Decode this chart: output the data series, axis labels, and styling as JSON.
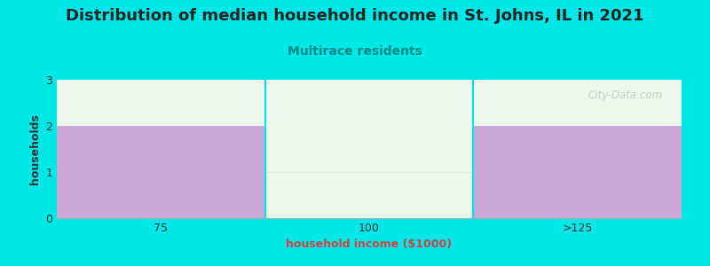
{
  "title": "Distribution of median household income in St. Johns, IL in 2021",
  "subtitle": "Multirace residents",
  "xlabel": "household income ($1000)",
  "ylabel": "households",
  "categories": [
    "75",
    "100",
    ">125"
  ],
  "values": [
    2,
    0,
    2
  ],
  "bar_colors": [
    "#c9a8d8",
    "#e2f0d8",
    "#c9a8d8"
  ],
  "ylim": [
    0,
    3
  ],
  "yticks": [
    0,
    1,
    2,
    3
  ],
  "background_color": "#00e8e8",
  "plot_bg_color": "#edf8ec",
  "title_color": "#222222",
  "subtitle_color": "#008888",
  "axis_label_color": "#333333",
  "tick_color": "#333333",
  "watermark": "City-Data.com",
  "title_fontsize": 13,
  "subtitle_fontsize": 10,
  "label_fontsize": 9,
  "tick_fontsize": 9
}
